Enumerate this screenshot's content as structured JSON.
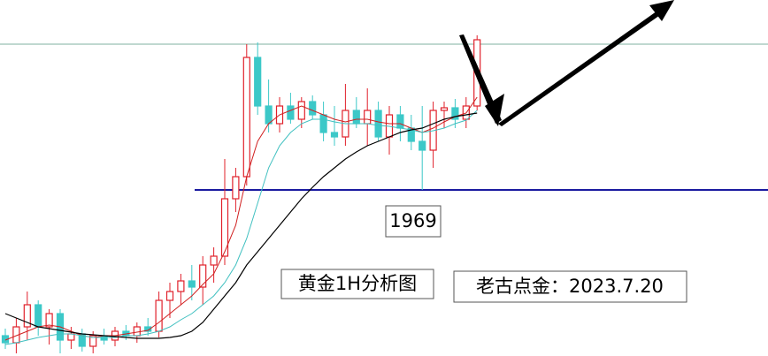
{
  "chart_data": {
    "type": "candlestick",
    "ylim": [
      1950.2,
      1990.5
    ],
    "up_color": "#e0202a",
    "down_color": "#3cc8c8",
    "candles": {
      "open": [
        1952.5,
        1951.7,
        1953.5,
        1956.0,
        1953.5,
        1955.0,
        1952.0,
        1952.7,
        1951.3,
        1952.5,
        1952.0,
        1953.0,
        1952.5,
        1953.5,
        1953.0,
        1956.5,
        1957.5,
        1958.7,
        1958.0,
        1960.5,
        1961.5,
        1968.0,
        1970.5,
        1984.0,
        1978.5,
        1976.5,
        1978.5,
        1977.0,
        1979.0,
        1977.5,
        1975.5,
        1975.0,
        1978.0,
        1976.5,
        1978.0,
        1975.0,
        1977.5,
        1976.0,
        1974.5,
        1973.5,
        1978.0,
        1978.3,
        1977.0,
        1978.5
      ],
      "high": [
        1953.3,
        1954.5,
        1957.5,
        1956.5,
        1955.5,
        1955.5,
        1953.5,
        1953.3,
        1953.0,
        1953.3,
        1953.5,
        1953.7,
        1954.0,
        1954.5,
        1957.5,
        1958.5,
        1959.5,
        1960.5,
        1961.5,
        1962.5,
        1972.5,
        1971.5,
        1985.5,
        1985.7,
        1981.5,
        1979.5,
        1980.0,
        1979.5,
        1979.7,
        1979.0,
        1978.5,
        1981.0,
        1979.5,
        1980.5,
        1979.0,
        1978.5,
        1978.5,
        1977.5,
        1978.5,
        1979.0,
        1979.0,
        1979.3,
        1979.5,
        1986.5
      ],
      "low": [
        1951.0,
        1950.5,
        1952.0,
        1952.5,
        1951.5,
        1950.5,
        1951.0,
        1950.7,
        1950.5,
        1951.5,
        1951.3,
        1952.0,
        1951.7,
        1952.5,
        1952.3,
        1954.5,
        1956.0,
        1956.5,
        1956.0,
        1958.5,
        1960.5,
        1966.5,
        1969.5,
        1977.5,
        1975.5,
        1975.5,
        1976.5,
        1976.0,
        1977.0,
        1974.5,
        1974.0,
        1974.0,
        1976.0,
        1974.0,
        1974.5,
        1973.0,
        1974.5,
        1973.5,
        1969.0,
        1971.5,
        1976.0,
        1976.0,
        1976.0,
        1978.0
      ],
      "close": [
        1951.7,
        1953.5,
        1956.0,
        1953.5,
        1955.0,
        1952.0,
        1952.7,
        1951.3,
        1952.5,
        1952.0,
        1953.0,
        1952.5,
        1953.5,
        1953.0,
        1956.5,
        1957.5,
        1958.7,
        1958.0,
        1960.5,
        1961.5,
        1968.0,
        1970.5,
        1984.0,
        1978.5,
        1976.5,
        1978.5,
        1977.0,
        1979.0,
        1977.5,
        1975.5,
        1975.0,
        1978.0,
        1976.5,
        1978.0,
        1975.0,
        1977.5,
        1976.0,
        1974.5,
        1973.5,
        1978.0,
        1978.3,
        1977.0,
        1978.5,
        1986.0
      ]
    },
    "series": [
      {
        "color": "#d02020",
        "values": [
          1952.0,
          1952.5,
          1953.0,
          1953.5,
          1953.7,
          1953.5,
          1953.0,
          1952.5,
          1952.3,
          1952.5,
          1952.5,
          1952.7,
          1952.9,
          1953.1,
          1954.0,
          1955.0,
          1956.0,
          1957.0,
          1958.3,
          1959.5,
          1962.0,
          1965.0,
          1970.5,
          1974.5,
          1976.5,
          1977.5,
          1978.0,
          1978.5,
          1978.0,
          1977.5,
          1977.0,
          1976.7,
          1977.0,
          1977.0,
          1976.7,
          1976.5,
          1976.5,
          1976.0,
          1975.5,
          1976.0,
          1976.7,
          1977.3,
          1977.7,
          1979.5
        ]
      },
      {
        "color": "#40c0c0",
        "values": [
          1951.5,
          1951.7,
          1952.0,
          1952.3,
          1952.5,
          1952.7,
          1952.7,
          1952.5,
          1952.3,
          1952.3,
          1952.3,
          1952.5,
          1952.5,
          1952.7,
          1953.0,
          1953.5,
          1954.3,
          1955.0,
          1956.0,
          1957.0,
          1958.5,
          1960.5,
          1963.5,
          1967.5,
          1971.5,
          1974.0,
          1975.5,
          1976.5,
          1977.0,
          1977.0,
          1976.7,
          1976.5,
          1976.5,
          1976.5,
          1976.3,
          1976.2,
          1976.0,
          1975.8,
          1975.5,
          1975.7,
          1976.0,
          1976.5,
          1976.9,
          1978.0
        ]
      },
      {
        "color": "#000000",
        "values": [
          1955.0,
          1954.5,
          1954.0,
          1953.5,
          1953.3,
          1953.1,
          1952.9,
          1952.7,
          1952.6,
          1952.5,
          1952.4,
          1952.3,
          1952.2,
          1952.2,
          1952.2,
          1952.3,
          1952.5,
          1953.0,
          1954.0,
          1955.5,
          1957.0,
          1958.5,
          1960.5,
          1962.0,
          1963.5,
          1965.0,
          1966.5,
          1968.0,
          1969.3,
          1970.5,
          1971.5,
          1972.5,
          1973.3,
          1974.0,
          1974.5,
          1975.0,
          1975.5,
          1975.8,
          1976.0,
          1976.5,
          1977.0,
          1977.3,
          1977.5,
          1977.7
        ]
      }
    ],
    "hlines": [
      {
        "value": 1985.5,
        "color": "#7fb0a0"
      },
      {
        "value": 1969,
        "color": "#1a1aa0"
      }
    ],
    "annotations": [
      "黄金1H分析图",
      "老古点金：2023.7.20"
    ]
  }
}
